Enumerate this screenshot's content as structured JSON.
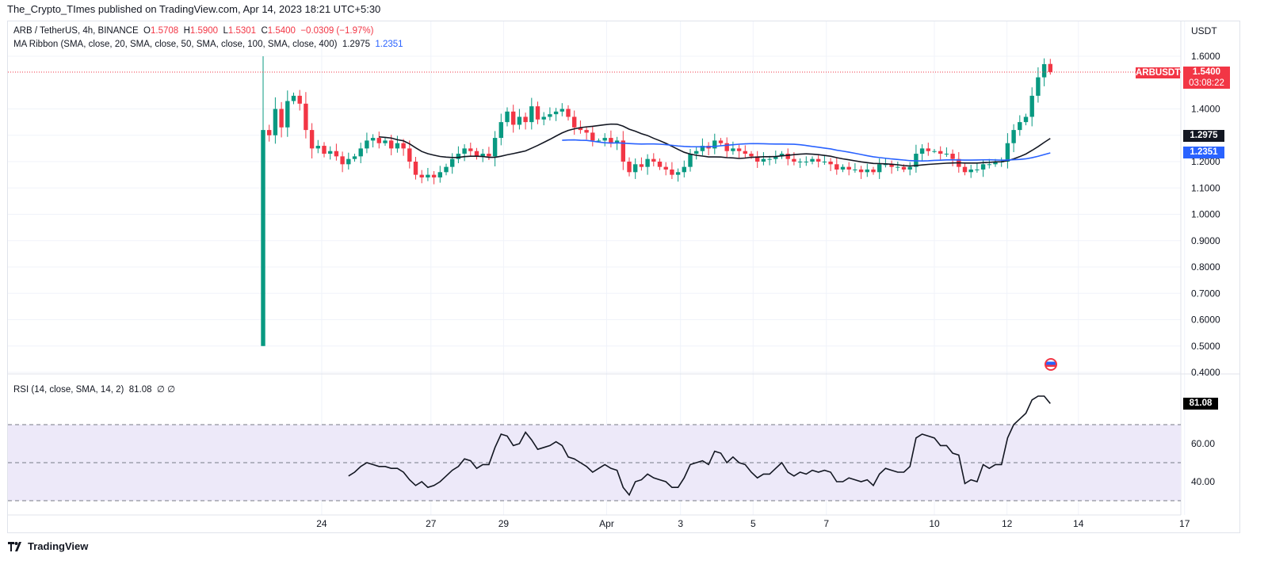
{
  "header": {
    "published": "The_Crypto_TImes published on TradingView.com, Apr 14, 2023 18:21 UTC+5:30"
  },
  "legend": {
    "symbol": "ARB / TetherUS, 4h, BINANCE",
    "o_label": "O",
    "o": "1.5708",
    "h_label": "H",
    "h": "1.5900",
    "l_label": "L",
    "l": "1.5301",
    "c_label": "C",
    "c": "1.5400",
    "change": "−0.0309 (−1.97%)",
    "ma": "MA Ribbon (SMA, close, 20, SMA, close, 50, SMA, close, 100, SMA, close, 400)",
    "ma1": "1.2975",
    "ma2": "1.2351",
    "rsi": "RSI (14, close, SMA, 14, 2)",
    "rsi_value": "81.08",
    "rsi_extra": "∅ ∅"
  },
  "axis": {
    "currency": "USDT",
    "price_ticks": [
      "1.6000",
      "1.4000",
      "1.3000",
      "1.2000",
      "1.1000",
      "1.0000",
      "0.9000",
      "0.8000",
      "0.7000",
      "0.6000",
      "0.5000",
      "0.4000"
    ],
    "price_tick_values": [
      1.6,
      1.4,
      1.3,
      1.2,
      1.1,
      1.0,
      0.9,
      0.8,
      0.7,
      0.6,
      0.5,
      0.4
    ],
    "rsi_ticks": [
      "60.00",
      "40.00"
    ],
    "time_ticks": [
      "24",
      "27",
      "29",
      "Apr",
      "3",
      "5",
      "7",
      "10",
      "12",
      "14",
      "17"
    ],
    "time_tick_candle_index": [
      9.6,
      27.5,
      39.4,
      56.3,
      68.4,
      80.3,
      92.3,
      110,
      121.9,
      133.6,
      151
    ]
  },
  "tags": {
    "symbol": "ARBUSDT",
    "last_price": "1.5400",
    "countdown": "03:08:22",
    "ma1": "1.2975",
    "ma2": "1.2351",
    "rsi": "81.08"
  },
  "colors": {
    "up": "#089981",
    "down": "#f23645",
    "ma20": "#131722",
    "ma50": "#2962ff",
    "rsi": "#131722",
    "rsi_band": "#ede9f9"
  },
  "icons": {
    "event": "us-flag-icon",
    "brand": "tradingview-logo-icon"
  },
  "footer": {
    "brand": "TradingView"
  },
  "chart_data": {
    "type": "candlestick",
    "interval": "4h",
    "price_range": [
      0.4,
      1.6
    ],
    "first_candle": {
      "open": 0.5,
      "high": 1.6,
      "low": 0.5
    },
    "last_candle": {
      "open": 1.5708,
      "high": 1.59,
      "low": 1.5301,
      "close": 1.54
    },
    "closes": [
      1.32,
      1.3,
      1.4,
      1.33,
      1.43,
      1.45,
      1.42,
      1.32,
      1.25,
      1.26,
      1.23,
      1.24,
      1.22,
      1.19,
      1.21,
      1.22,
      1.25,
      1.28,
      1.29,
      1.27,
      1.28,
      1.25,
      1.27,
      1.25,
      1.2,
      1.15,
      1.14,
      1.15,
      1.14,
      1.16,
      1.18,
      1.21,
      1.23,
      1.25,
      1.24,
      1.22,
      1.23,
      1.22,
      1.29,
      1.35,
      1.39,
      1.34,
      1.37,
      1.35,
      1.41,
      1.36,
      1.37,
      1.38,
      1.39,
      1.4,
      1.37,
      1.33,
      1.32,
      1.31,
      1.28,
      1.28,
      1.29,
      1.27,
      1.28,
      1.2,
      1.16,
      1.19,
      1.18,
      1.21,
      1.2,
      1.18,
      1.17,
      1.15,
      1.16,
      1.18,
      1.23,
      1.24,
      1.26,
      1.25,
      1.28,
      1.27,
      1.24,
      1.25,
      1.24,
      1.23,
      1.22,
      1.2,
      1.21,
      1.21,
      1.22,
      1.23,
      1.21,
      1.2,
      1.2,
      1.2,
      1.21,
      1.2,
      1.2,
      1.19,
      1.17,
      1.18,
      1.17,
      1.17,
      1.16,
      1.17,
      1.16,
      1.19,
      1.19,
      1.18,
      1.18,
      1.17,
      1.18,
      1.23,
      1.25,
      1.24,
      1.24,
      1.23,
      1.23,
      1.21,
      1.18,
      1.16,
      1.17,
      1.17,
      1.19,
      1.19,
      1.2,
      1.2,
      1.27,
      1.32,
      1.35,
      1.37,
      1.45,
      1.52,
      1.57,
      1.54
    ],
    "ma_periods": [
      20,
      50
    ],
    "rsi_start_index": 14,
    "rsi_range": [
      30,
      70
    ],
    "rsi": [
      43,
      45,
      48,
      50,
      49,
      48,
      48,
      47,
      47,
      45,
      41,
      38,
      40,
      37,
      38,
      40,
      43,
      46,
      48,
      52,
      51,
      47,
      49,
      49,
      58,
      65,
      64,
      59,
      60,
      66,
      62,
      57,
      58,
      59,
      61,
      59,
      53,
      52,
      50,
      48,
      45,
      47,
      49,
      47,
      46,
      37,
      33,
      40,
      41,
      44,
      42,
      41,
      40,
      37,
      37,
      42,
      49,
      50,
      51,
      49,
      56,
      55,
      50,
      53,
      50,
      49,
      45,
      42,
      44,
      44,
      47,
      50,
      45,
      43,
      45,
      44,
      46,
      45,
      46,
      45,
      40,
      40,
      42,
      41,
      40,
      41,
      38,
      44,
      47,
      46,
      45,
      45,
      48,
      63,
      65,
      64,
      63,
      59,
      59,
      55,
      54,
      39,
      41,
      40,
      49,
      47,
      49,
      49,
      63,
      70,
      73,
      76,
      83,
      85,
      85,
      81.08
    ]
  }
}
